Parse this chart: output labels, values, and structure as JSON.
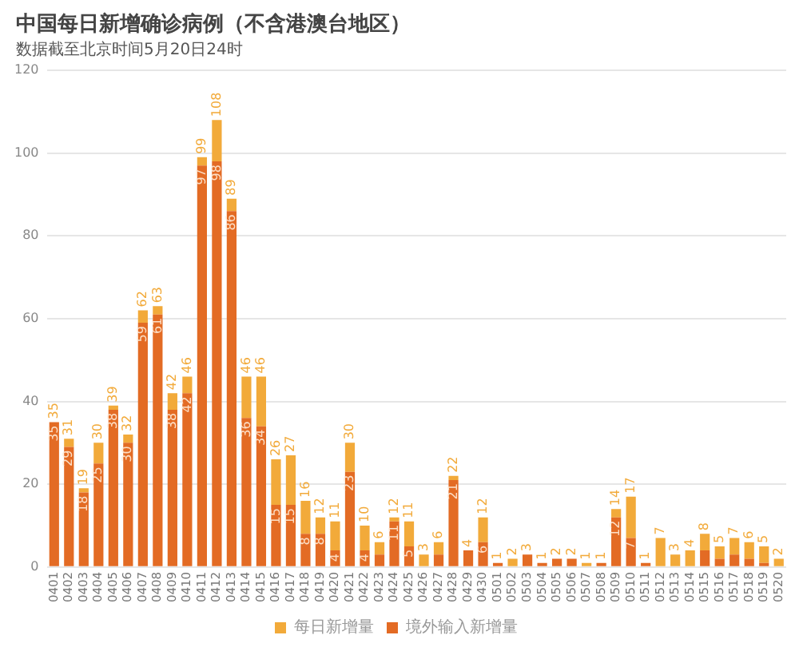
{
  "chart_data": {
    "type": "bar",
    "title": "中国每日新增确诊病例（不含港澳台地区）",
    "subtitle": "数据截至北京时间5月20日24时",
    "categories": [
      "0401",
      "0402",
      "0403",
      "0404",
      "0405",
      "0406",
      "0407",
      "0408",
      "0409",
      "0410",
      "0411",
      "0412",
      "0413",
      "0414",
      "0415",
      "0416",
      "0417",
      "0418",
      "0419",
      "0420",
      "0421",
      "0422",
      "0423",
      "0424",
      "0425",
      "0426",
      "0427",
      "0428",
      "0429",
      "0430",
      "0501",
      "0502",
      "0503",
      "0504",
      "0505",
      "0506",
      "0507",
      "0508",
      "0509",
      "0510",
      "0511",
      "0512",
      "0513",
      "0514",
      "0515",
      "0516",
      "0517",
      "0518",
      "0519",
      "0520"
    ],
    "series": [
      {
        "name": "境外输入新增量",
        "color": "#e36b24",
        "values": [
          35,
          29,
          18,
          25,
          38,
          30,
          59,
          61,
          38,
          42,
          97,
          98,
          86,
          36,
          34,
          15,
          15,
          8,
          8,
          4,
          23,
          4,
          3,
          11,
          5,
          0,
          3,
          21,
          4,
          6,
          1,
          0,
          3,
          1,
          2,
          2,
          0,
          1,
          12,
          7,
          1,
          0,
          0,
          0,
          4,
          2,
          3,
          2,
          1,
          0
        ],
        "value_labels": [
          "35",
          "29",
          "18",
          "25",
          "38",
          "30",
          "59",
          "61",
          "38",
          "42",
          "97",
          "98",
          "86",
          "36",
          "34",
          "15",
          "15",
          "8",
          "8",
          "4",
          "23",
          "4",
          null,
          "11",
          "5",
          null,
          null,
          "21",
          null,
          "6",
          null,
          null,
          null,
          null,
          null,
          null,
          null,
          null,
          "12",
          "7",
          null,
          null,
          null,
          null,
          null,
          null,
          null,
          null,
          null,
          null
        ]
      },
      {
        "name": "每日新增量",
        "color": "#f2aa3a",
        "values": [
          0,
          2,
          1,
          5,
          1,
          2,
          3,
          2,
          4,
          4,
          2,
          10,
          3,
          10,
          12,
          11,
          12,
          8,
          4,
          7,
          7,
          6,
          3,
          1,
          6,
          3,
          3,
          1,
          0,
          6,
          0,
          2,
          0,
          0,
          0,
          0,
          1,
          0,
          2,
          10,
          0,
          7,
          3,
          4,
          4,
          3,
          4,
          4,
          4,
          2
        ]
      }
    ],
    "totals": [
      "35",
      "31",
      "19",
      "30",
      "39",
      "32",
      "62",
      "63",
      "42",
      "46",
      "99",
      "108",
      "89",
      "46",
      "46",
      "26",
      "27",
      "16",
      "12",
      "11",
      "30",
      "10",
      "6",
      "12",
      "11",
      "3",
      "6",
      "22",
      "4",
      "12",
      "1",
      "2",
      "3",
      "1",
      "2",
      "2",
      "1",
      "1",
      "14",
      "17",
      "1",
      "7",
      "3",
      "4",
      "8",
      "5",
      "7",
      "6",
      "5",
      "2"
    ],
    "stacked": true,
    "ylim": [
      0,
      120
    ],
    "yticks": [
      0,
      20,
      40,
      60,
      80,
      100,
      120
    ],
    "grid": "y",
    "legend": "bottom"
  }
}
